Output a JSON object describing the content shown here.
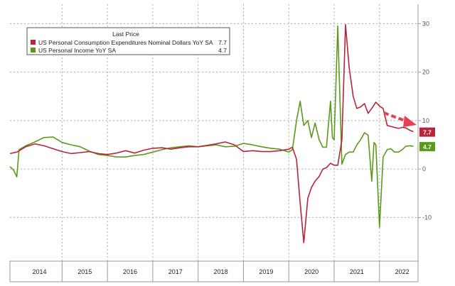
{
  "chart_data": {
    "type": "line",
    "title": "",
    "xlabel": "",
    "ylabel": "",
    "ylim": [
      -19,
      34
    ],
    "y_ticks": [
      -10,
      0,
      10,
      20,
      30
    ],
    "y_tick_labels": [
      "-10",
      "0",
      "10",
      "20",
      "30"
    ],
    "x_range": [
      2013.85,
      2022.85
    ],
    "x_tick_labels": [
      "2014",
      "2015",
      "2016",
      "2017",
      "2018",
      "2019",
      "2020",
      "2021",
      "2022"
    ],
    "grid": true,
    "legend": {
      "placement": "top-left",
      "header": "Last Price",
      "entries": [
        {
          "name": "US Personal Consumption Expenditures Nominal Dollars YoY SA",
          "value": "7.7",
          "color": "#b8243c"
        },
        {
          "name": "US Personal Income YoY SA",
          "value": "4.7",
          "color": "#5a9a1a"
        }
      ]
    },
    "series": [
      {
        "name": "US Personal Consumption Expenditures Nominal Dollars YoY SA",
        "color": "#b8243c",
        "last_value": "7.7",
        "points": [
          [
            2013.85,
            3.2
          ],
          [
            2014.0,
            3.5
          ],
          [
            2014.2,
            4.6
          ],
          [
            2014.4,
            5.2
          ],
          [
            2014.6,
            4.8
          ],
          [
            2014.8,
            4.2
          ],
          [
            2015.0,
            3.6
          ],
          [
            2015.2,
            3.2
          ],
          [
            2015.4,
            3.4
          ],
          [
            2015.6,
            3.6
          ],
          [
            2015.8,
            3.2
          ],
          [
            2016.0,
            3.0
          ],
          [
            2016.2,
            3.3
          ],
          [
            2016.4,
            3.8
          ],
          [
            2016.6,
            3.3
          ],
          [
            2016.8,
            3.9
          ],
          [
            2017.0,
            4.3
          ],
          [
            2017.2,
            4.4
          ],
          [
            2017.4,
            4.1
          ],
          [
            2017.6,
            4.4
          ],
          [
            2017.8,
            4.6
          ],
          [
            2018.0,
            4.6
          ],
          [
            2018.2,
            4.9
          ],
          [
            2018.4,
            5.2
          ],
          [
            2018.6,
            5.6
          ],
          [
            2018.8,
            5.0
          ],
          [
            2019.0,
            3.6
          ],
          [
            2019.2,
            3.8
          ],
          [
            2019.4,
            3.6
          ],
          [
            2019.6,
            3.6
          ],
          [
            2019.8,
            3.8
          ],
          [
            2020.0,
            4.1
          ],
          [
            2020.08,
            4.5
          ],
          [
            2020.17,
            2.0
          ],
          [
            2020.25,
            -7.0
          ],
          [
            2020.33,
            -15.2
          ],
          [
            2020.42,
            -6.0
          ],
          [
            2020.5,
            -3.8
          ],
          [
            2020.58,
            -2.5
          ],
          [
            2020.67,
            -1.5
          ],
          [
            2020.75,
            0.0
          ],
          [
            2020.83,
            0.3
          ],
          [
            2020.92,
            1.2
          ],
          [
            2021.0,
            0.8
          ],
          [
            2021.08,
            0.8
          ],
          [
            2021.17,
            6.0
          ],
          [
            2021.25,
            29.8
          ],
          [
            2021.33,
            21.0
          ],
          [
            2021.42,
            15.0
          ],
          [
            2021.5,
            12.5
          ],
          [
            2021.58,
            12.8
          ],
          [
            2021.67,
            13.5
          ],
          [
            2021.75,
            11.5
          ],
          [
            2021.83,
            12.5
          ],
          [
            2021.92,
            13.8
          ],
          [
            2022.0,
            13.0
          ],
          [
            2022.08,
            12.5
          ],
          [
            2022.17,
            9.0
          ],
          [
            2022.25,
            8.8
          ],
          [
            2022.33,
            8.6
          ],
          [
            2022.42,
            8.4
          ],
          [
            2022.5,
            8.6
          ],
          [
            2022.58,
            8.5
          ],
          [
            2022.67,
            8.0
          ],
          [
            2022.75,
            7.7
          ]
        ]
      },
      {
        "name": "US Personal Income YoY SA",
        "color": "#5a9a1a",
        "last_value": "4.7",
        "points": [
          [
            2013.85,
            0.5
          ],
          [
            2013.93,
            -0.2
          ],
          [
            2014.0,
            -1.6
          ],
          [
            2014.05,
            4.0
          ],
          [
            2014.2,
            4.8
          ],
          [
            2014.4,
            5.6
          ],
          [
            2014.6,
            6.5
          ],
          [
            2014.8,
            6.6
          ],
          [
            2015.0,
            5.5
          ],
          [
            2015.2,
            5.0
          ],
          [
            2015.4,
            4.6
          ],
          [
            2015.6,
            3.7
          ],
          [
            2015.8,
            3.0
          ],
          [
            2016.0,
            2.8
          ],
          [
            2016.2,
            2.5
          ],
          [
            2016.4,
            2.5
          ],
          [
            2016.6,
            2.8
          ],
          [
            2016.8,
            3.0
          ],
          [
            2017.0,
            3.5
          ],
          [
            2017.2,
            4.0
          ],
          [
            2017.4,
            4.4
          ],
          [
            2017.6,
            4.6
          ],
          [
            2017.8,
            4.8
          ],
          [
            2018.0,
            4.6
          ],
          [
            2018.2,
            4.8
          ],
          [
            2018.4,
            5.0
          ],
          [
            2018.6,
            4.6
          ],
          [
            2018.8,
            4.7
          ],
          [
            2019.0,
            5.3
          ],
          [
            2019.2,
            5.0
          ],
          [
            2019.4,
            4.6
          ],
          [
            2019.6,
            4.3
          ],
          [
            2019.8,
            4.1
          ],
          [
            2020.0,
            3.5
          ],
          [
            2020.08,
            4.0
          ],
          [
            2020.17,
            10.0
          ],
          [
            2020.25,
            14.0
          ],
          [
            2020.33,
            9.0
          ],
          [
            2020.42,
            10.0
          ],
          [
            2020.5,
            6.5
          ],
          [
            2020.58,
            9.5
          ],
          [
            2020.67,
            6.0
          ],
          [
            2020.75,
            4.5
          ],
          [
            2020.83,
            4.5
          ],
          [
            2020.92,
            14.0
          ],
          [
            2020.96,
            6.5
          ],
          [
            2021.0,
            6.0
          ],
          [
            2021.08,
            29.5
          ],
          [
            2021.17,
            1.0
          ],
          [
            2021.25,
            3.0
          ],
          [
            2021.33,
            3.5
          ],
          [
            2021.42,
            3.5
          ],
          [
            2021.5,
            5.0
          ],
          [
            2021.58,
            6.0
          ],
          [
            2021.67,
            7.5
          ],
          [
            2021.75,
            7.0
          ],
          [
            2021.83,
            -2.5
          ],
          [
            2021.88,
            5.5
          ],
          [
            2021.92,
            5.0
          ],
          [
            2022.0,
            -12.0
          ],
          [
            2022.08,
            2.5
          ],
          [
            2022.17,
            4.0
          ],
          [
            2022.25,
            4.2
          ],
          [
            2022.33,
            3.5
          ],
          [
            2022.42,
            3.5
          ],
          [
            2022.5,
            4.0
          ],
          [
            2022.58,
            4.7
          ],
          [
            2022.67,
            4.8
          ],
          [
            2022.75,
            4.7
          ]
        ]
      }
    ]
  }
}
